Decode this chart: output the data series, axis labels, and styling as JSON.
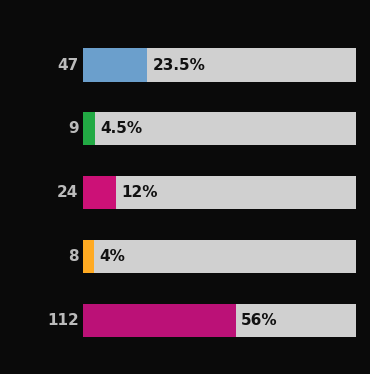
{
  "bars": [
    {
      "label": "47",
      "value": 23.5,
      "color": "#6B9FCC"
    },
    {
      "label": "9",
      "value": 4.5,
      "color": "#22AA44"
    },
    {
      "label": "24",
      "value": 12.0,
      "color": "#CC1177"
    },
    {
      "label": "8",
      "value": 4.0,
      "color": "#FFAA22"
    },
    {
      "label": "112",
      "value": 56.0,
      "color": "#BB1177"
    }
  ],
  "max_value": 100,
  "bg_color": "#0A0A0A",
  "bar_bg_color": "#D0D0D0",
  "label_color": "#BBBBBB",
  "pct_text_color": "#111111",
  "bar_height": 0.52,
  "figsize": [
    3.7,
    3.74
  ],
  "dpi": 100,
  "label_fontsize": 11,
  "pct_fontsize": 11
}
